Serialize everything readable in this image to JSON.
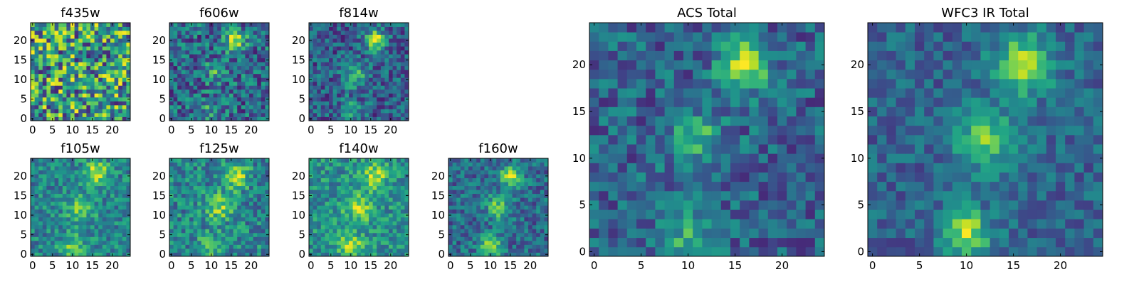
{
  "figure": {
    "description_free": true
  },
  "chart_data": [
    {
      "type": "heatmap",
      "title": "f435w",
      "x_ticks": [
        0,
        5,
        10,
        15,
        20
      ],
      "y_ticks": [
        0,
        5,
        10,
        15,
        20
      ],
      "xlim": [
        0,
        24
      ],
      "ylim": [
        0,
        24
      ],
      "grid": false,
      "colormap": "viridis",
      "peaks": [],
      "noise_level": 0.9,
      "base": 0.55,
      "seed": 11
    },
    {
      "type": "heatmap",
      "title": "f606w",
      "x_ticks": [
        0,
        5,
        10,
        15,
        20
      ],
      "y_ticks": [
        0,
        5,
        10,
        15,
        20
      ],
      "xlim": [
        0,
        24
      ],
      "ylim": [
        0,
        24
      ],
      "grid": false,
      "colormap": "viridis",
      "peaks": [
        {
          "x": 16,
          "y": 20,
          "amp": 0.6,
          "s": 1.8
        },
        {
          "x": 11,
          "y": 12,
          "amp": 0.25,
          "s": 2.0
        },
        {
          "x": 10,
          "y": 2,
          "amp": 0.2,
          "s": 2.0
        }
      ],
      "noise_level": 0.55,
      "base": 0.35,
      "seed": 23
    },
    {
      "type": "heatmap",
      "title": "f814w",
      "x_ticks": [
        0,
        5,
        10,
        15,
        20
      ],
      "y_ticks": [
        0,
        5,
        10,
        15,
        20
      ],
      "xlim": [
        0,
        24
      ],
      "ylim": [
        0,
        24
      ],
      "grid": false,
      "colormap": "viridis",
      "peaks": [
        {
          "x": 16,
          "y": 20,
          "amp": 0.65,
          "s": 1.8
        },
        {
          "x": 11,
          "y": 11,
          "amp": 0.35,
          "s": 2.2
        },
        {
          "x": 10,
          "y": 2,
          "amp": 0.3,
          "s": 2.0
        }
      ],
      "noise_level": 0.45,
      "base": 0.3,
      "seed": 37
    },
    {
      "type": "heatmap",
      "title": "f105w",
      "x_ticks": [
        0,
        5,
        10,
        15,
        20
      ],
      "y_ticks": [
        0,
        5,
        10,
        15,
        20
      ],
      "xlim": [
        0,
        24
      ],
      "ylim": [
        0,
        24
      ],
      "grid": false,
      "colormap": "viridis",
      "peaks": [
        {
          "x": 16,
          "y": 21,
          "amp": 0.5,
          "s": 2.0
        },
        {
          "x": 12,
          "y": 12,
          "amp": 0.3,
          "s": 2.5
        },
        {
          "x": 10,
          "y": 2,
          "amp": 0.3,
          "s": 2.2
        }
      ],
      "noise_level": 0.4,
      "base": 0.45,
      "seed": 41
    },
    {
      "type": "heatmap",
      "title": "f125w",
      "x_ticks": [
        0,
        5,
        10,
        15,
        20
      ],
      "y_ticks": [
        0,
        5,
        10,
        15,
        20
      ],
      "xlim": [
        0,
        24
      ],
      "ylim": [
        0,
        24
      ],
      "grid": false,
      "colormap": "viridis",
      "peaks": [
        {
          "x": 16,
          "y": 20,
          "amp": 0.45,
          "s": 2.2
        },
        {
          "x": 12,
          "y": 12,
          "amp": 0.35,
          "s": 2.5
        },
        {
          "x": 10,
          "y": 2,
          "amp": 0.3,
          "s": 2.2
        }
      ],
      "noise_level": 0.45,
      "base": 0.45,
      "seed": 53
    },
    {
      "type": "heatmap",
      "title": "f140w",
      "x_ticks": [
        0,
        5,
        10,
        15,
        20
      ],
      "y_ticks": [
        0,
        5,
        10,
        15,
        20
      ],
      "xlim": [
        0,
        24
      ],
      "ylim": [
        0,
        24
      ],
      "grid": false,
      "colormap": "viridis",
      "peaks": [
        {
          "x": 16,
          "y": 20,
          "amp": 0.4,
          "s": 2.2
        },
        {
          "x": 12,
          "y": 12,
          "amp": 0.35,
          "s": 2.5
        },
        {
          "x": 10,
          "y": 2,
          "amp": 0.45,
          "s": 2.0
        }
      ],
      "noise_level": 0.4,
      "base": 0.5,
      "seed": 67
    },
    {
      "type": "heatmap",
      "title": "f160w",
      "x_ticks": [
        0,
        5,
        10,
        15,
        20
      ],
      "y_ticks": [
        0,
        5,
        10,
        15,
        20
      ],
      "xlim": [
        0,
        24
      ],
      "ylim": [
        0,
        24
      ],
      "grid": false,
      "colormap": "viridis",
      "peaks": [
        {
          "x": 15,
          "y": 20,
          "amp": 0.5,
          "s": 2.0
        },
        {
          "x": 12,
          "y": 12,
          "amp": 0.4,
          "s": 2.2
        },
        {
          "x": 10,
          "y": 2,
          "amp": 0.6,
          "s": 1.8
        }
      ],
      "noise_level": 0.4,
      "base": 0.35,
      "seed": 71
    },
    {
      "type": "heatmap",
      "title": "ACS Total",
      "x_ticks": [
        0,
        5,
        10,
        15,
        20
      ],
      "y_ticks": [
        0,
        5,
        10,
        15,
        20
      ],
      "xlim": [
        0,
        24
      ],
      "ylim": [
        0,
        24
      ],
      "grid": false,
      "colormap": "viridis",
      "peaks": [
        {
          "x": 16,
          "y": 20,
          "amp": 0.65,
          "s": 1.8
        },
        {
          "x": 11,
          "y": 12,
          "amp": 0.35,
          "s": 2.0
        },
        {
          "x": 10,
          "y": 2,
          "amp": 0.3,
          "s": 2.0
        }
      ],
      "noise_level": 0.4,
      "base": 0.32,
      "seed": 83
    },
    {
      "type": "heatmap",
      "title": "WFC3 IR Total",
      "x_ticks": [
        0,
        5,
        10,
        15,
        20
      ],
      "y_ticks": [
        0,
        5,
        10,
        15,
        20
      ],
      "xlim": [
        0,
        24
      ],
      "ylim": [
        0,
        24
      ],
      "grid": false,
      "colormap": "viridis",
      "peaks": [
        {
          "x": 16,
          "y": 20,
          "amp": 0.55,
          "s": 2.2
        },
        {
          "x": 12,
          "y": 12,
          "amp": 0.45,
          "s": 2.2
        },
        {
          "x": 10,
          "y": 2,
          "amp": 0.55,
          "s": 1.8
        }
      ],
      "noise_level": 0.3,
      "base": 0.32,
      "seed": 97
    }
  ]
}
